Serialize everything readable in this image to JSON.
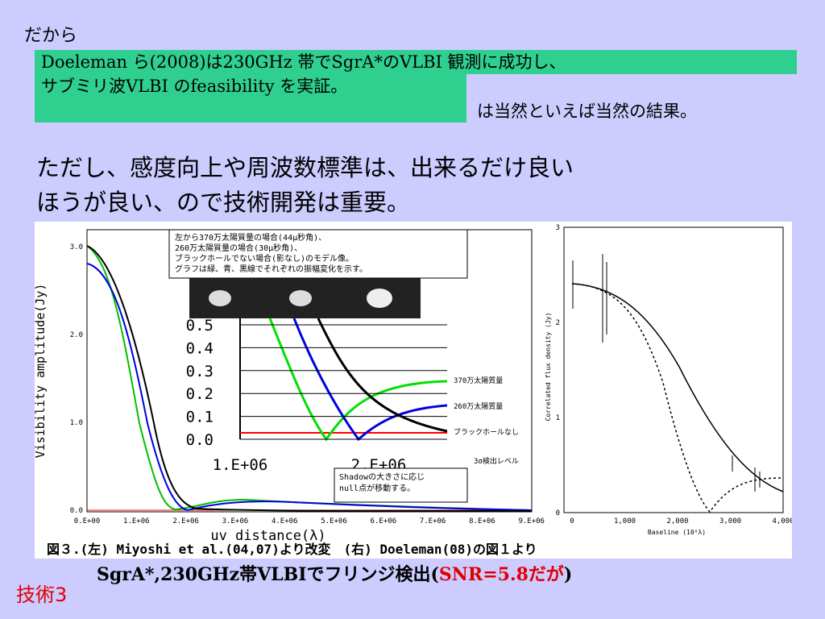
{
  "intro": "だから",
  "highlight": {
    "lines": [
      "Doeleman ら(2008)は230GHz 帯でSgrA*のVLBI 観測に成功し、",
      "サブミリ波VLBI のfeasibility を実証。"
    ],
    "tail": "は当然といえば当然の結果。"
  },
  "body": [
    "ただし、感度向上や周波数標準は、出来るだけ良い",
    "ほうが良い、ので技術開発は重要。"
  ],
  "figure": {
    "left": {
      "y_label": "Visibility amplitude(Jy)",
      "x_label": "uv distance(λ)",
      "yticks": [
        "3.0",
        "2.0",
        "1.0",
        "0.0"
      ],
      "xticks": [
        "0.E+00",
        "1.E+06",
        "2.E+06",
        "3.E+06",
        "4.E+06",
        "5.E+06",
        "6.E+06",
        "7.E+06",
        "8.E+06",
        "9.E+06"
      ],
      "note": [
        "左から370万太陽質量の場合(44μ秒角)、",
        "260万太陽質量の場合(30μ秒角)、",
        "ブラックホールでない場合(影なし)のモデル像。",
        "グラフは緑、青、黒線でそれぞれの振幅変化を示す。"
      ],
      "inset_yticks": [
        "0.5",
        "0.4",
        "0.3",
        "0.2",
        "0.1",
        "0.0"
      ],
      "inset_xticks": [
        "1.E+06",
        "2.E+06"
      ],
      "legend": [
        "370万太陽質量",
        "260万太陽質量",
        "ブラックホールなし"
      ],
      "threshold": "3σ検出レベル",
      "shadow_note": [
        "Shadowの大きさに応じ",
        "null点が移動する。"
      ]
    },
    "right": {
      "y_label": "Correlated flux density (Jy)",
      "x_label": "Baseline (10⁶λ)",
      "yticks": [
        "3",
        "2",
        "1",
        "0"
      ],
      "xticks": [
        "0",
        "1,000",
        "2,000",
        "3,000",
        "4,000"
      ]
    },
    "caption": "図３.(左) Miyoshi et al.(04,07)より改変　(右) Doeleman(08)の図１より"
  },
  "caption": {
    "main": "SgrA*,230GHz帯VLBIでフリンジ検出(",
    "snr": "SNR=5.8だが",
    "close": ")"
  },
  "label": "技術3"
}
